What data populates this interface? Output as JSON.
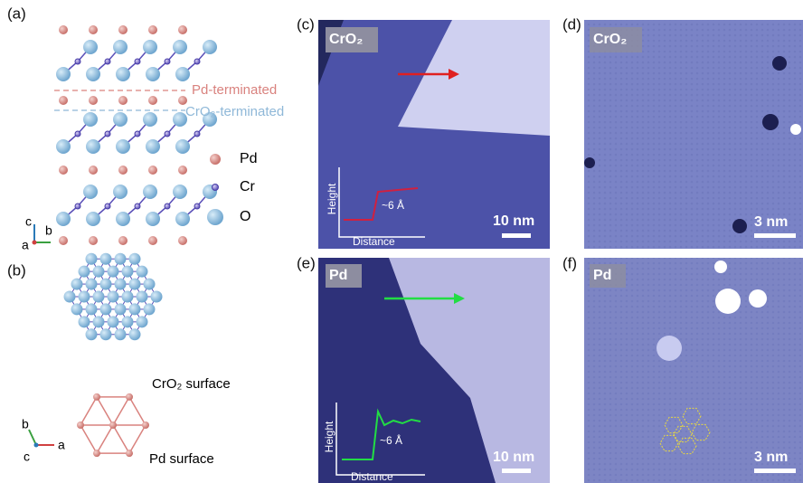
{
  "panel_a": {
    "label": "(a)",
    "pd_terminated": "Pd-terminated",
    "cro2_terminated": "CrO₂-terminated",
    "legend": [
      "Pd",
      "Cr",
      "O"
    ],
    "axes": [
      "c",
      "b",
      "a"
    ]
  },
  "panel_b": {
    "label": "(b)",
    "cro2_surface": "CrO₂ surface",
    "pd_surface": "Pd surface",
    "axes": [
      "b",
      "c",
      "a"
    ]
  },
  "panel_c": {
    "label": "(c)",
    "tag": "CrO₂",
    "inset_y": "Height",
    "inset_x": "Distance",
    "step": "~6 Å",
    "scale": "10 nm"
  },
  "panel_d": {
    "label": "(d)",
    "tag": "CrO₂",
    "scale": "3 nm"
  },
  "panel_e": {
    "label": "(e)",
    "tag": "Pd",
    "inset_y": "Height",
    "inset_x": "Distance",
    "step": "~6 Å",
    "scale": "10 nm"
  },
  "panel_f": {
    "label": "(f)",
    "tag": "Pd",
    "scale": "3 nm"
  }
}
